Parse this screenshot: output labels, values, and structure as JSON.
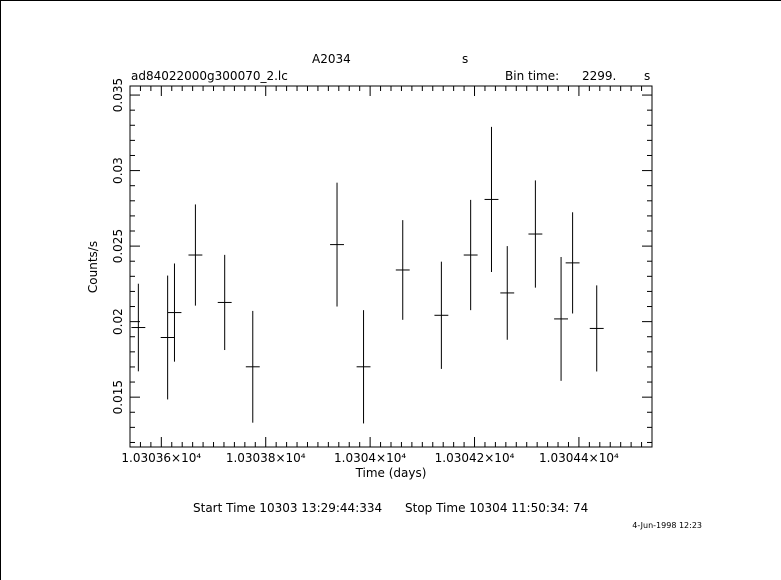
{
  "header": {
    "object": "A2034",
    "unit_s": "s",
    "file": "ad84022000g300070_2.lc",
    "bin_label": "Bin time:",
    "bin_value": "2299.",
    "bin_unit": "s"
  },
  "footer": {
    "start_time": "Start Time 10303 13:29:44:334",
    "stop_time": "Stop Time 10304 11:50:34: 74",
    "date_stamp": "4-Jun-1998 12:23"
  },
  "chart_data": {
    "type": "scatter",
    "xlabel": "Time (days)",
    "ylabel": "Counts/s",
    "xlim": [
      10303.54,
      10304.54
    ],
    "ylim": [
      0.0117,
      0.0356
    ],
    "x_ticks_major": [
      10303.6,
      10303.8,
      10304.0,
      10304.2,
      10304.4
    ],
    "x_tick_labels": [
      "1.03036×10⁴",
      "1.03038×10⁴",
      "1.0304×10⁴",
      "1.03042×10⁴",
      "1.03044×10⁴"
    ],
    "y_ticks_major": [
      0.015,
      0.02,
      0.025,
      0.03,
      0.035
    ],
    "y_tick_labels": [
      "0.015",
      "0.02",
      "0.025",
      "0.03",
      "0.035"
    ],
    "bin_halfwidth_days": 0.0133,
    "points": [
      {
        "x": 10303.556,
        "y": 0.01961,
        "err": 0.0029
      },
      {
        "x": 10303.6121,
        "y": 0.01895,
        "err": 0.0041
      },
      {
        "x": 10303.6252,
        "y": 0.0206,
        "err": 0.00325
      },
      {
        "x": 10303.6653,
        "y": 0.02441,
        "err": 0.00335
      },
      {
        "x": 10303.7214,
        "y": 0.02127,
        "err": 0.00315
      },
      {
        "x": 10303.7752,
        "y": 0.01701,
        "err": 0.0037
      },
      {
        "x": 10303.9366,
        "y": 0.0251,
        "err": 0.0041
      },
      {
        "x": 10303.9874,
        "y": 0.01701,
        "err": 0.00375
      },
      {
        "x": 10304.0625,
        "y": 0.02342,
        "err": 0.0033
      },
      {
        "x": 10304.1365,
        "y": 0.02042,
        "err": 0.00355
      },
      {
        "x": 10304.1926,
        "y": 0.02441,
        "err": 0.00365
      },
      {
        "x": 10304.2325,
        "y": 0.02809,
        "err": 0.0048
      },
      {
        "x": 10304.2627,
        "y": 0.0219,
        "err": 0.0031
      },
      {
        "x": 10304.3166,
        "y": 0.0258,
        "err": 0.00355
      },
      {
        "x": 10304.3658,
        "y": 0.02018,
        "err": 0.0041
      },
      {
        "x": 10304.3879,
        "y": 0.02389,
        "err": 0.00335
      },
      {
        "x": 10304.4341,
        "y": 0.01955,
        "err": 0.00285
      }
    ]
  }
}
